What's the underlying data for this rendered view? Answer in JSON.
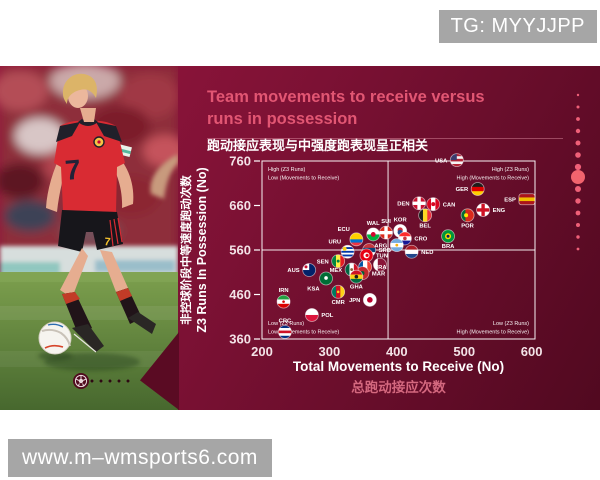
{
  "watermark_top": {
    "label": "TG: MYYJJPP"
  },
  "watermark_bottom": {
    "label": "www.m–wmsports6.com"
  },
  "title": {
    "line1": "Team movements to receive versus",
    "line2": "runs in possession",
    "subtitle_zh": "跑动接应表现与中强度跑表现呈正相关"
  },
  "photo": {
    "jersey_number": "7",
    "shorts_number": "7"
  },
  "colors": {
    "accent_pink": "#e25673",
    "card_from": "#97163e",
    "card_to": "#510920",
    "xlabel_zh_color": "#d4687f",
    "watermark_bg": "#a6a6a6",
    "dot_pink": "#ef6078"
  },
  "chart_data": {
    "type": "scatter",
    "xlabel_en": "Total Movements to Receive (No)",
    "xlabel_zh": "总跑动接应次数",
    "ylabel_en": "Z3 Runs In Possession (No)",
    "ylabel_zh": "非控球阶段中等速度跑动次数",
    "xlim": [
      200,
      605
    ],
    "ylim": [
      360,
      760
    ],
    "xticks": [
      200,
      300,
      400,
      500,
      600
    ],
    "yticks": [
      760,
      660,
      560,
      460,
      360
    ],
    "quadrant_divider_x": 387,
    "quadrant_divider_y": 560,
    "annotations": {
      "top_left": [
        "High (Z3 Runs)",
        "Low (Movements to Receive)"
      ],
      "top_right": [
        "High (Z3 Runs)",
        "High (Movements to Receive)"
      ],
      "bottom_left": [
        "Low (Z3 Runs)",
        "Low (Movements to Receive)"
      ],
      "bottom_right": [
        "Low (Z3 Runs)",
        "High (Movements to Receive)"
      ]
    },
    "points": [
      {
        "code": "USA",
        "x": 489,
        "y": 762,
        "label_side": "left",
        "flag": {
          "dir": "h",
          "stripes": [
            "#b22234",
            "#f5f5f5",
            "#b22234",
            "#f5f5f5",
            "#b22234"
          ],
          "overlays": [
            "canton:#3c3b6e"
          ]
        }
      },
      {
        "code": "GER",
        "x": 520,
        "y": 697,
        "label_side": "left",
        "flag": {
          "dir": "h",
          "stripes": [
            "#1d1d1b",
            "#dd0000",
            "#ffce00"
          ]
        }
      },
      {
        "code": "ESP",
        "x": 593,
        "y": 674,
        "label_side": "left",
        "shape": "rect",
        "flag": {
          "dir": "h",
          "stripes": [
            "#aa151b",
            "#f1bf00",
            "#aa151b"
          ]
        }
      },
      {
        "code": "DEN",
        "x": 433,
        "y": 665,
        "label_side": "left",
        "flag": {
          "dir": "h",
          "stripes": [
            "#c8102e"
          ],
          "overlays": [
            "cross:#ffffff"
          ]
        }
      },
      {
        "code": "CAN",
        "x": 454,
        "y": 663,
        "label_side": "right",
        "flag": {
          "dir": "v",
          "stripes": [
            "#d80621",
            "#ffffff",
            "#d80621"
          ],
          "overlays": [
            "dot:#d80621:2:0:0"
          ]
        }
      },
      {
        "code": "ENG",
        "x": 528,
        "y": 650,
        "label_side": "right",
        "flag": {
          "dir": "h",
          "stripes": [
            "#ffffff"
          ],
          "overlays": [
            "cross:#ce1124"
          ]
        }
      },
      {
        "code": "BEL",
        "x": 442,
        "y": 638,
        "label_side": "below",
        "flag": {
          "dir": "v",
          "stripes": [
            "#1d1d1b",
            "#fdda24",
            "#ef3340"
          ]
        }
      },
      {
        "code": "POR",
        "x": 505,
        "y": 638,
        "label_side": "below",
        "flag": {
          "dir": "v",
          "stripes": [
            "#046a38",
            "#da291c",
            "#da291c"
          ],
          "overlays": [
            "dot:#ffe900:2:-1.5:0"
          ]
        }
      },
      {
        "code": "KOR",
        "x": 405,
        "y": 603,
        "label_side": "above",
        "flag": {
          "dir": "h",
          "stripes": [
            "#ffffff"
          ],
          "overlays": [
            "dot:#cd2e3a:2.6:0:-0.9",
            "dot:#274b8f:2.6:0:1.5"
          ]
        }
      },
      {
        "code": "SUI",
        "x": 384,
        "y": 599,
        "label_side": "above",
        "flag": {
          "dir": "h",
          "stripes": [
            "#da291c"
          ],
          "overlays": [
            "cross:#ffffff"
          ]
        }
      },
      {
        "code": "BRA",
        "x": 476,
        "y": 591,
        "label_side": "below",
        "flag": {
          "dir": "h",
          "stripes": [
            "#009739"
          ],
          "overlays": [
            "dot:#fedd00:3:0:0",
            "dot:#012169:1.5:0:0"
          ]
        }
      },
      {
        "code": "CRO",
        "x": 412,
        "y": 586,
        "label_side": "right",
        "flag": {
          "dir": "h",
          "stripes": [
            "#ff2b2b",
            "#ffffff",
            "#171796"
          ],
          "overlays": [
            "dot:#c8353b:1.8:0:0"
          ]
        }
      },
      {
        "code": "WAL",
        "x": 365,
        "y": 595,
        "label_side": "above",
        "flag": {
          "dir": "h",
          "stripes": [
            "#ffffff",
            "#00b140"
          ],
          "overlays": [
            "dot:#d30731:2.4:0:0"
          ]
        }
      },
      {
        "code": "ECU",
        "x": 340,
        "y": 584,
        "label_side": "above-left",
        "flag": {
          "dir": "h",
          "stripes": [
            "#ffd100",
            "#ffd100",
            "#0072ce",
            "#ef3340"
          ]
        }
      },
      {
        "code": "ARG",
        "x": 400,
        "y": 571,
        "label_side": "left",
        "flag": {
          "dir": "h",
          "stripes": [
            "#74acdf",
            "#ffffff",
            "#74acdf"
          ],
          "overlays": [
            "dot:#f6b40e:1.4:0:0"
          ]
        }
      },
      {
        "code": "SRB",
        "x": 359,
        "y": 560,
        "label_side": "right",
        "flag": {
          "dir": "h",
          "stripes": [
            "#c6363c",
            "#0c4076",
            "#ffffff"
          ]
        }
      },
      {
        "code": "NED",
        "x": 422,
        "y": 556,
        "label_side": "right",
        "flag": {
          "dir": "h",
          "stripes": [
            "#ae1c28",
            "#ffffff",
            "#21468b"
          ]
        }
      },
      {
        "code": "URU",
        "x": 327,
        "y": 556,
        "label_side": "above-left",
        "flag": {
          "dir": "h",
          "stripes": [
            "#ffffff",
            "#0038a8",
            "#ffffff",
            "#0038a8",
            "#ffffff",
            "#0038a8",
            "#ffffff"
          ],
          "overlays": [
            "dot:#fcd116:2:-3:-3"
          ]
        }
      },
      {
        "code": "TUN",
        "x": 355,
        "y": 548,
        "label_side": "right",
        "flag": {
          "dir": "h",
          "stripes": [
            "#e70013"
          ],
          "overlays": [
            "dot:#ffffff:3:0:0",
            "dot:#e70013:1.6:0.6:0"
          ]
        }
      },
      {
        "code": "SEN",
        "x": 313,
        "y": 535,
        "label_side": "left",
        "flag": {
          "dir": "v",
          "stripes": [
            "#00853f",
            "#fdef42",
            "#e31b23"
          ],
          "overlays": [
            "dot:#00853f:1.5:0:0"
          ]
        }
      },
      {
        "code": "QAT",
        "x": 375,
        "y": 527,
        "label_side": "left",
        "flag": {
          "dir": "v",
          "stripes": [
            "#ffffff",
            "#8a1538",
            "#8a1538"
          ]
        }
      },
      {
        "code": "FRA",
        "x": 353,
        "y": 522,
        "label_side": "right",
        "flag": {
          "dir": "v",
          "stripes": [
            "#0055a4",
            "#ffffff",
            "#ef4135"
          ]
        }
      },
      {
        "code": "MAR",
        "x": 349,
        "y": 508,
        "label_side": "right",
        "flag": {
          "dir": "h",
          "stripes": [
            "#c1272d"
          ],
          "overlays": [
            "dot:#006233:2:0:0"
          ]
        }
      },
      {
        "code": "MEX",
        "x": 333,
        "y": 516,
        "label_side": "left",
        "flag": {
          "dir": "v",
          "stripes": [
            "#006341",
            "#ffffff",
            "#ce1126"
          ],
          "overlays": [
            "dot:#8c6239:1.4:0:0"
          ]
        }
      },
      {
        "code": "AUS",
        "x": 270,
        "y": 515,
        "label_side": "left",
        "flag": {
          "dir": "h",
          "stripes": [
            "#012169"
          ],
          "overlays": [
            "canton:#ffffff",
            "dot:#c8102e:1.5:-3.2:-3.2"
          ]
        }
      },
      {
        "code": "GHA",
        "x": 340,
        "y": 500,
        "label_side": "below",
        "flag": {
          "dir": "h",
          "stripes": [
            "#ce1126",
            "#fcd116",
            "#006b3f"
          ],
          "overlays": [
            "dot:#1d1d1b:1.8:0:0"
          ]
        }
      },
      {
        "code": "KSA",
        "x": 295,
        "y": 496,
        "label_side": "below-left",
        "flag": {
          "dir": "h",
          "stripes": [
            "#006c35"
          ],
          "overlays": [
            "dot:#ffffff:1.8:0:-0.5"
          ]
        }
      },
      {
        "code": "CMR",
        "x": 313,
        "y": 466,
        "label_side": "below",
        "flag": {
          "dir": "v",
          "stripes": [
            "#007a5e",
            "#ce1126",
            "#fcd116"
          ],
          "overlays": [
            "dot:#fcd116:1.3:0:0"
          ]
        }
      },
      {
        "code": "JPN",
        "x": 360,
        "y": 448,
        "label_side": "left",
        "flag": {
          "dir": "h",
          "stripes": [
            "#ffffff"
          ],
          "overlays": [
            "dot:#bc002d:2.8:0:0"
          ]
        }
      },
      {
        "code": "IRN",
        "x": 232,
        "y": 444,
        "label_side": "above",
        "flag": {
          "dir": "h",
          "stripes": [
            "#239f40",
            "#ffffff",
            "#da0000"
          ],
          "overlays": [
            "dot:#da0000:1.3:0:0"
          ]
        }
      },
      {
        "code": "POL",
        "x": 274,
        "y": 414,
        "label_side": "right",
        "flag": {
          "dir": "h",
          "stripes": [
            "#ffffff",
            "#dc143c"
          ]
        }
      },
      {
        "code": "CRC",
        "x": 234,
        "y": 376,
        "label_side": "above",
        "flag": {
          "dir": "h",
          "stripes": [
            "#002b7f",
            "#ffffff",
            "#ce1126",
            "#ffffff",
            "#002b7f"
          ]
        }
      }
    ]
  }
}
